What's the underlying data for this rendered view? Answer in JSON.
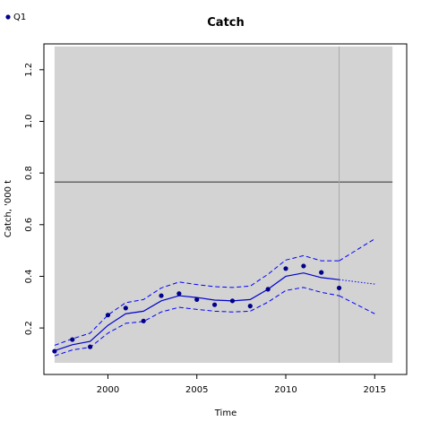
{
  "chart_data": {
    "type": "line",
    "title": "Catch",
    "xlabel": "Time",
    "ylabel": "Catch, '000 t",
    "xlim": [
      1996.4,
      2016.8
    ],
    "ylim": [
      0.02,
      1.3
    ],
    "xticks": [
      2000,
      2005,
      2010,
      2015
    ],
    "yticks": [
      0.2,
      0.4,
      0.6,
      0.8,
      1.0,
      1.2
    ],
    "xtick_labels": [
      "2000",
      "2005",
      "2010",
      "2015"
    ],
    "ytick_labels": [
      "0.2",
      "0.4",
      "0.6",
      "0.8",
      "1.0",
      "1.2"
    ],
    "grid": false,
    "legend": {
      "position": "top-left",
      "entries": [
        "Q1"
      ]
    },
    "shaded_region": {
      "x": [
        1997,
        2016
      ],
      "y": [
        0.065,
        1.29
      ],
      "color": "#d3d3d3"
    },
    "reference_hline": {
      "y": 0.765,
      "color": "#666666"
    },
    "reference_vline": {
      "x": 2013,
      "color": "#aaaaaa"
    },
    "observed": {
      "name": "Q1",
      "color": "#00008b",
      "x": [
        1997,
        1998,
        1999,
        2000,
        2001,
        2002,
        2003,
        2004,
        2005,
        2006,
        2007,
        2008,
        2009,
        2010,
        2011,
        2012,
        2013
      ],
      "y": [
        0.11,
        0.155,
        0.127,
        0.25,
        0.277,
        0.227,
        0.325,
        0.333,
        0.31,
        0.29,
        0.305,
        0.285,
        0.35,
        0.43,
        0.44,
        0.415,
        0.355
      ]
    },
    "fit": {
      "color": "#0000cd",
      "x": [
        1997,
        1998,
        1999,
        2000,
        2001,
        2002,
        2003,
        2004,
        2005,
        2006,
        2007,
        2008,
        2009,
        2010,
        2011,
        2012,
        2013
      ],
      "y": [
        0.112,
        0.135,
        0.148,
        0.21,
        0.255,
        0.265,
        0.305,
        0.325,
        0.318,
        0.308,
        0.305,
        0.31,
        0.35,
        0.4,
        0.413,
        0.395,
        0.387
      ]
    },
    "upper": {
      "color": "#0000ff",
      "x": [
        1997,
        1998,
        1999,
        2000,
        2001,
        2002,
        2003,
        2004,
        2005,
        2006,
        2007,
        2008,
        2009,
        2010,
        2011,
        2012,
        2013
      ],
      "y": [
        0.133,
        0.158,
        0.18,
        0.25,
        0.298,
        0.31,
        0.355,
        0.378,
        0.368,
        0.36,
        0.357,
        0.362,
        0.408,
        0.463,
        0.48,
        0.46,
        0.46
      ]
    },
    "lower": {
      "color": "#0000ff",
      "x": [
        1997,
        1998,
        1999,
        2000,
        2001,
        2002,
        2003,
        2004,
        2005,
        2006,
        2007,
        2008,
        2009,
        2010,
        2011,
        2012,
        2013
      ],
      "y": [
        0.092,
        0.115,
        0.125,
        0.18,
        0.218,
        0.225,
        0.262,
        0.28,
        0.272,
        0.265,
        0.262,
        0.265,
        0.3,
        0.345,
        0.357,
        0.338,
        0.325
      ]
    },
    "forecast": {
      "color": "#0000ff",
      "x": [
        2013,
        2015
      ],
      "y": [
        0.387,
        0.37
      ],
      "upper": [
        0.46,
        0.545
      ],
      "lower": [
        0.325,
        0.255
      ]
    }
  }
}
